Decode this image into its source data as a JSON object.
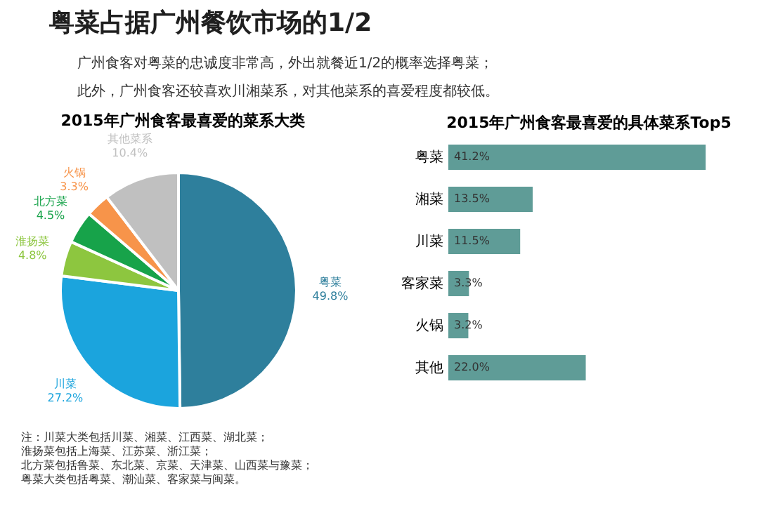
{
  "chart_data": [
    {
      "type": "other",
      "title": "粤菜占据广州餐饮市场的1/2",
      "annotations": [
        "广州食客对粤菜的忠诚度非常高，外出就餐近1/2的概率选择粤菜；",
        "此外，广州食客还较喜欢川湘菜系，对其他菜系的喜爱程度都较低。"
      ]
    },
    {
      "type": "pie",
      "title": "2015年广州食客最喜爱的菜系大类",
      "categories": [
        "粤菜",
        "川菜",
        "淮扬菜",
        "北方菜",
        "火锅",
        "其他菜系"
      ],
      "values": [
        49.8,
        27.2,
        4.8,
        4.5,
        3.3,
        10.4
      ],
      "colors": [
        "#2e7f9c",
        "#1ba4dd",
        "#8dc63f",
        "#17a34a",
        "#f7944a",
        "#c0c0c0"
      ],
      "value_labels": [
        "49.8%",
        "27.2%",
        "4.8%",
        "4.5%",
        "3.3%",
        "10.4%"
      ],
      "annotations": [
        "注：川菜大类包括川菜、湘菜、江西菜、湖北菜；",
        "淮扬菜包括上海菜、江苏菜、浙江菜；",
        "北方菜包括鲁菜、东北菜、京菜、天津菜、山西菜与豫菜；",
        "粤菜大类包括粤菜、潮汕菜、客家菜与闽菜。"
      ]
    },
    {
      "type": "bar",
      "orientation": "horizontal",
      "title": "2015年广州食客最喜爱的具体菜系Top5",
      "categories": [
        "粤菜",
        "湘菜",
        "川菜",
        "客家菜",
        "火锅",
        "其他"
      ],
      "values": [
        41.2,
        13.5,
        11.5,
        3.3,
        3.2,
        22.0
      ],
      "color": "#5f9c97",
      "value_labels": [
        "41.2%",
        "13.5%",
        "11.5%",
        "3.3%",
        "3.2%",
        "22.0%"
      ],
      "tick_labels": "y"
    }
  ]
}
